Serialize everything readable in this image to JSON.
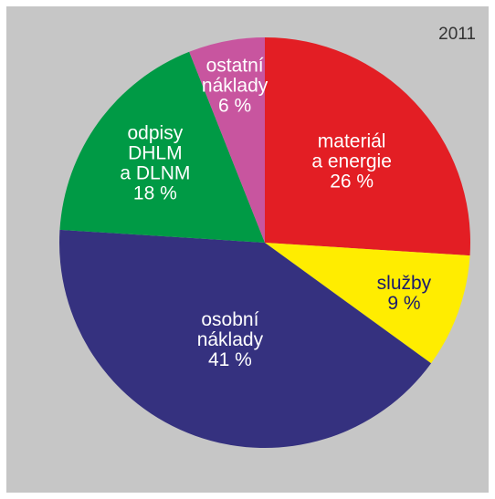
{
  "chart_data": {
    "type": "pie",
    "year": "2011",
    "slices": [
      {
        "label_lines": [
          "materiál",
          "a energie",
          "26 %"
        ],
        "value": 26,
        "color": "#e31e24",
        "text_color": "#ffffff"
      },
      {
        "label_lines": [
          "služby",
          "9 %"
        ],
        "value": 9,
        "color": "#ffed00",
        "text_color": "#1a1a6e"
      },
      {
        "label_lines": [
          "osobní",
          "náklady",
          "41 %"
        ],
        "value": 41,
        "color": "#35317f",
        "text_color": "#ffffff"
      },
      {
        "label_lines": [
          "odpisy",
          "DHLM",
          "a DLNM",
          "18 %"
        ],
        "value": 18,
        "color": "#009a45",
        "text_color": "#ffffff"
      },
      {
        "label_lines": [
          "ostatní",
          "náklady",
          "6 %"
        ],
        "value": 6,
        "color": "#c8559f",
        "text_color": "#ffffff"
      }
    ]
  }
}
